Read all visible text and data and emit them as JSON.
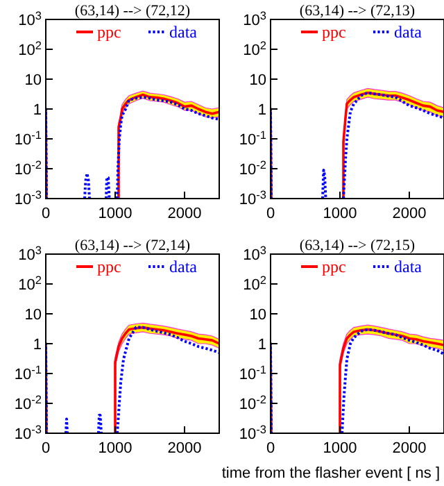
{
  "chart_data": [
    {
      "type": "line",
      "title": "(63,14) --> (72,12)",
      "xlim": [
        0,
        2500
      ],
      "xticks": [
        0,
        1000,
        2000
      ],
      "ylim": [
        0.001,
        1000
      ],
      "log": "y",
      "legend": "top",
      "yticks": [
        {
          "value": 0.001,
          "label": "10$^{-3}$"
        },
        {
          "value": 0.01,
          "label": "10$^{-2}$"
        },
        {
          "value": 0.1,
          "label": "10$^{-1}$"
        },
        {
          "value": 1,
          "label": "1"
        },
        {
          "value": 10,
          "label": "10"
        },
        {
          "value": 100,
          "label": "10$^{2}$"
        },
        {
          "value": 1000,
          "label": "10$^{3}$"
        }
      ],
      "series": [
        {
          "name": "ppc",
          "color": "#ff0000",
          "line_style": "solid",
          "x": [
            0,
            0,
            10,
            500,
            1050,
            1050,
            1080,
            1100,
            1150,
            1200,
            1300,
            1400,
            1500,
            1600,
            1700,
            1800,
            1900,
            2000,
            2100,
            2200,
            2300,
            2400,
            2500
          ],
          "values": [
            0.001,
            1,
            0.001,
            null,
            0.001,
            0.25,
            0.5,
            1,
            1.5,
            2,
            2.5,
            3,
            2.5,
            2.4,
            2.2,
            1.9,
            1.6,
            1.2,
            1.3,
            1,
            0.8,
            0.7,
            0.8
          ],
          "upper": [
            null,
            null,
            null,
            null,
            null,
            0.35,
            0.7,
            1.4,
            2.1,
            2.8,
            3.4,
            4,
            3.4,
            3.2,
            3,
            2.6,
            2.2,
            1.7,
            1.8,
            1.4,
            1.1,
            1,
            1.1
          ],
          "lower": [
            null,
            null,
            null,
            null,
            null,
            0.18,
            0.35,
            0.7,
            1.1,
            1.5,
            1.9,
            2.3,
            1.9,
            1.8,
            1.7,
            1.4,
            1.2,
            0.9,
            0.9,
            0.7,
            0.55,
            0.5,
            0.55
          ]
        },
        {
          "name": "data",
          "color": "#0000ff",
          "line_style": "dotted",
          "x": [
            0,
            0,
            10,
            300,
            560,
            575,
            595,
            615,
            630,
            700,
            870,
            880,
            900,
            915,
            950,
            1030,
            1040,
            1060,
            1080,
            1100,
            1150,
            1200,
            1300,
            1400,
            1500,
            1600,
            1700,
            1800,
            1900,
            2000,
            2100,
            2200,
            2300,
            2400,
            2500
          ],
          "values": [
            0.001,
            1,
            0.001,
            null,
            0.001,
            0.004,
            0.007,
            0.004,
            0.001,
            null,
            0.001,
            0.005,
            0.005,
            0.001,
            null,
            0.001,
            0.01,
            0.1,
            0.3,
            0.6,
            1,
            2,
            2.3,
            2.5,
            2.3,
            2,
            1.9,
            1.7,
            1.4,
            1,
            0.9,
            0.7,
            0.6,
            0.5,
            0.45
          ]
        }
      ]
    },
    {
      "type": "line",
      "title": "(63,14) --> (72,13)",
      "xlim": [
        0,
        2500
      ],
      "xticks": [
        0,
        1000,
        2000
      ],
      "ylim": [
        0.001,
        1000
      ],
      "log": "y",
      "legend": "top",
      "yticks": [
        {
          "value": 0.001,
          "label": "10$^{-3}$"
        },
        {
          "value": 0.01,
          "label": "10$^{-2}$"
        },
        {
          "value": 0.1,
          "label": "10$^{-1}$"
        },
        {
          "value": 1,
          "label": "1"
        },
        {
          "value": 10,
          "label": "10"
        },
        {
          "value": 100,
          "label": "10$^{2}$"
        },
        {
          "value": 1000,
          "label": "10$^{3}$"
        }
      ],
      "series": [
        {
          "name": "ppc",
          "color": "#ff0000",
          "line_style": "solid",
          "x": [
            0,
            0,
            10,
            500,
            1050,
            1050,
            1080,
            1100,
            1150,
            1200,
            1300,
            1400,
            1500,
            1600,
            1700,
            1800,
            1900,
            2000,
            2100,
            2200,
            2300,
            2400,
            2500
          ],
          "values": [
            0.001,
            1,
            0.001,
            null,
            0.001,
            0.08,
            0.5,
            1.5,
            2,
            2.5,
            3,
            3.5,
            3.2,
            3,
            2.8,
            2.8,
            2.4,
            2,
            1.6,
            1.3,
            1.2,
            0.9,
            0.8
          ],
          "upper": [
            null,
            null,
            null,
            null,
            null,
            0.12,
            0.7,
            2.1,
            2.8,
            3.5,
            4.2,
            4.9,
            4.5,
            4.2,
            3.9,
            3.9,
            3.4,
            2.8,
            2.2,
            1.8,
            1.7,
            1.3,
            1.1
          ],
          "lower": [
            null,
            null,
            null,
            null,
            null,
            0.05,
            0.35,
            1,
            1.4,
            1.8,
            2.1,
            2.5,
            2.2,
            2.1,
            2,
            2,
            1.7,
            1.4,
            1.1,
            0.9,
            0.8,
            0.6,
            0.55
          ]
        },
        {
          "name": "data",
          "color": "#0000ff",
          "line_style": "dotted",
          "x": [
            0,
            0,
            10,
            300,
            750,
            765,
            780,
            795,
            900,
            1050,
            1080,
            1100,
            1150,
            1200,
            1250,
            1300,
            1400,
            1500,
            1600,
            1700,
            1800,
            1900,
            2000,
            2100,
            2200,
            2300,
            2400,
            2500
          ],
          "values": [
            0.001,
            1,
            0.001,
            null,
            0.001,
            0.009,
            0.006,
            0.001,
            null,
            0.001,
            0.02,
            0.1,
            0.8,
            1.5,
            2,
            2.8,
            3.5,
            3.2,
            3,
            2.7,
            2.5,
            1.8,
            1.3,
            1.1,
            0.9,
            0.7,
            0.6,
            0.5
          ]
        }
      ]
    },
    {
      "type": "line",
      "title": "(63,14) --> (72,14)",
      "xlim": [
        0,
        2500
      ],
      "xticks": [
        0,
        1000,
        2000
      ],
      "ylim": [
        0.001,
        1000
      ],
      "log": "y",
      "legend": "top",
      "yticks": [
        {
          "value": 0.001,
          "label": "10$^{-3}$"
        },
        {
          "value": 0.01,
          "label": "10$^{-2}$"
        },
        {
          "value": 0.1,
          "label": "10$^{-1}$"
        },
        {
          "value": 1,
          "label": "1"
        },
        {
          "value": 10,
          "label": "10"
        },
        {
          "value": 100,
          "label": "10$^{2}$"
        },
        {
          "value": 1000,
          "label": "10$^{3}$"
        }
      ],
      "series": [
        {
          "name": "ppc",
          "color": "#ff0000",
          "line_style": "solid",
          "x": [
            0,
            0,
            10,
            500,
            1000,
            1000,
            1050,
            1100,
            1150,
            1200,
            1300,
            1400,
            1500,
            1600,
            1700,
            1800,
            1900,
            2000,
            2100,
            2200,
            2300,
            2400,
            2500
          ],
          "values": [
            0.001,
            1,
            0.001,
            null,
            0.001,
            0.24,
            0.8,
            1.5,
            2.2,
            3,
            3.3,
            3.5,
            3.2,
            3,
            2.8,
            2.5,
            2.2,
            2,
            1.8,
            1.5,
            1.4,
            1.3,
            1
          ],
          "upper": [
            null,
            null,
            null,
            null,
            null,
            0.35,
            1.1,
            2.1,
            3.1,
            4.2,
            4.6,
            4.9,
            4.5,
            4.2,
            3.9,
            3.5,
            3.1,
            2.8,
            2.5,
            2.1,
            2,
            1.8,
            1.4
          ],
          "lower": [
            null,
            null,
            null,
            null,
            null,
            0.17,
            0.55,
            1,
            1.5,
            2.1,
            2.3,
            2.5,
            2.2,
            2.1,
            2,
            1.8,
            1.5,
            1.4,
            1.3,
            1,
            1,
            0.9,
            0.7
          ]
        },
        {
          "name": "data",
          "color": "#0000ff",
          "line_style": "dotted",
          "x": [
            0,
            0,
            10,
            200,
            290,
            300,
            310,
            400,
            760,
            770,
            785,
            800,
            900,
            1030,
            1080,
            1120,
            1200,
            1300,
            1400,
            1500,
            1600,
            1700,
            1800,
            1900,
            2000,
            2100,
            2200,
            2300,
            2400,
            2500
          ],
          "values": [
            0.001,
            1,
            0.001,
            null,
            0.001,
            0.003,
            0.001,
            null,
            0.001,
            0.004,
            0.004,
            0.001,
            null,
            0.001,
            0.05,
            0.3,
            1.5,
            3.5,
            3.5,
            3,
            2.6,
            2.3,
            2,
            1.6,
            1.2,
            1,
            0.8,
            0.7,
            0.6,
            0.5
          ]
        }
      ]
    },
    {
      "type": "line",
      "title": "(63,14) --> (72,15)",
      "xlabel": "time from the flasher event [ ns ]",
      "xlim": [
        0,
        2500
      ],
      "xticks": [
        0,
        1000,
        2000
      ],
      "ylim": [
        0.001,
        1000
      ],
      "log": "y",
      "legend": "top",
      "yticks": [
        {
          "value": 0.001,
          "label": "10$^{-3}$"
        },
        {
          "value": 0.01,
          "label": "10$^{-2}$"
        },
        {
          "value": 0.1,
          "label": "10$^{-1}$"
        },
        {
          "value": 1,
          "label": "1"
        },
        {
          "value": 10,
          "label": "10"
        },
        {
          "value": 100,
          "label": "10$^{2}$"
        },
        {
          "value": 1000,
          "label": "10$^{3}$"
        }
      ],
      "series": [
        {
          "name": "ppc",
          "color": "#ff0000",
          "line_style": "solid",
          "x": [
            0,
            0,
            10,
            500,
            1000,
            1000,
            1050,
            1100,
            1150,
            1200,
            1300,
            1400,
            1500,
            1600,
            1700,
            1800,
            1900,
            2000,
            2100,
            2200,
            2300,
            2400,
            2500
          ],
          "values": [
            0.001,
            1,
            0.001,
            null,
            0.001,
            0.2,
            0.7,
            1.5,
            2,
            2.5,
            2.8,
            3,
            2.8,
            2.5,
            2.2,
            2,
            1.8,
            1.5,
            1.4,
            1.2,
            1.1,
            1,
            0.9
          ],
          "upper": [
            null,
            null,
            null,
            null,
            null,
            0.3,
            1,
            2.1,
            2.8,
            3.5,
            3.9,
            4.2,
            3.9,
            3.5,
            3.1,
            2.8,
            2.5,
            2.1,
            2,
            1.7,
            1.5,
            1.4,
            1.3
          ],
          "lower": [
            null,
            null,
            null,
            null,
            null,
            0.14,
            0.5,
            1,
            1.4,
            1.8,
            2,
            2.1,
            2,
            1.8,
            1.5,
            1.4,
            1.3,
            1,
            1,
            0.85,
            0.75,
            0.7,
            0.6
          ]
        },
        {
          "name": "data",
          "color": "#0000ff",
          "line_style": "dotted",
          "x": [
            0,
            0,
            10,
            500,
            1030,
            1060,
            1100,
            1150,
            1200,
            1250,
            1300,
            1400,
            1500,
            1600,
            1700,
            1800,
            1900,
            2000,
            2100,
            2200,
            2300,
            2400,
            2500
          ],
          "values": [
            0.001,
            1,
            0.001,
            null,
            0.001,
            0.02,
            0.3,
            1,
            1.6,
            2,
            2.6,
            3,
            2.8,
            2.5,
            2.2,
            2,
            1.6,
            1.3,
            1.1,
            0.9,
            0.7,
            0.6,
            0.45
          ]
        }
      ]
    }
  ]
}
